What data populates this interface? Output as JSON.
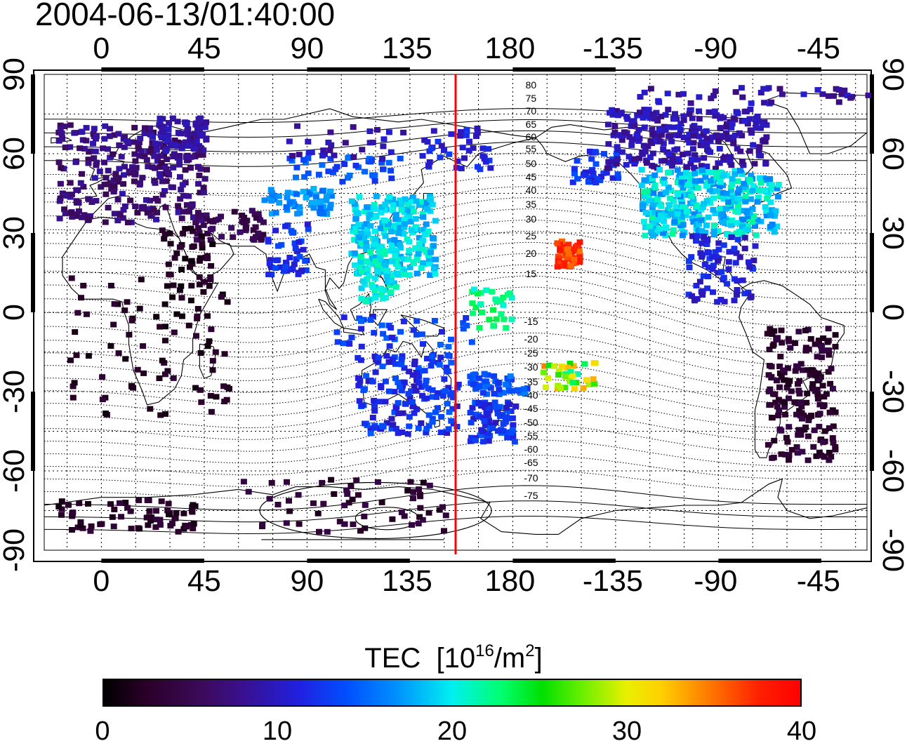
{
  "title": "2004-06-13/01:40:00",
  "lon_ticks": [
    "0",
    "45",
    "90",
    "135",
    "180",
    "-135",
    "-90",
    "-45"
  ],
  "lat_ticks": [
    "90",
    "60",
    "30",
    "0",
    "-30",
    "-60",
    "-90"
  ],
  "geomagnetic_labels": [
    "80",
    "75",
    "70",
    "65",
    "60",
    "55",
    "50",
    "45",
    "40",
    "35",
    "30",
    "25",
    "20",
    "15",
    "-15",
    "-20",
    "-25",
    "-30",
    "-35",
    "-40",
    "-45",
    "-50",
    "-55",
    "-60",
    "-65",
    "-70",
    "-75"
  ],
  "colorbar": {
    "label": "TEC",
    "unit_prefix": "[10",
    "unit_exp": "16",
    "unit_mid": "/m",
    "unit_exp2": "2",
    "unit_suffix": "]",
    "ticks": [
      "0",
      "10",
      "20",
      "30",
      "40"
    ],
    "min": 0,
    "max": 40
  },
  "map": {
    "lon_range": [
      -25,
      335
    ],
    "lat_range": [
      -90,
      90
    ],
    "terminator_lon": 155,
    "terminator_color": "#ff0000",
    "background": "#ffffff",
    "grid": "dotted"
  }
}
